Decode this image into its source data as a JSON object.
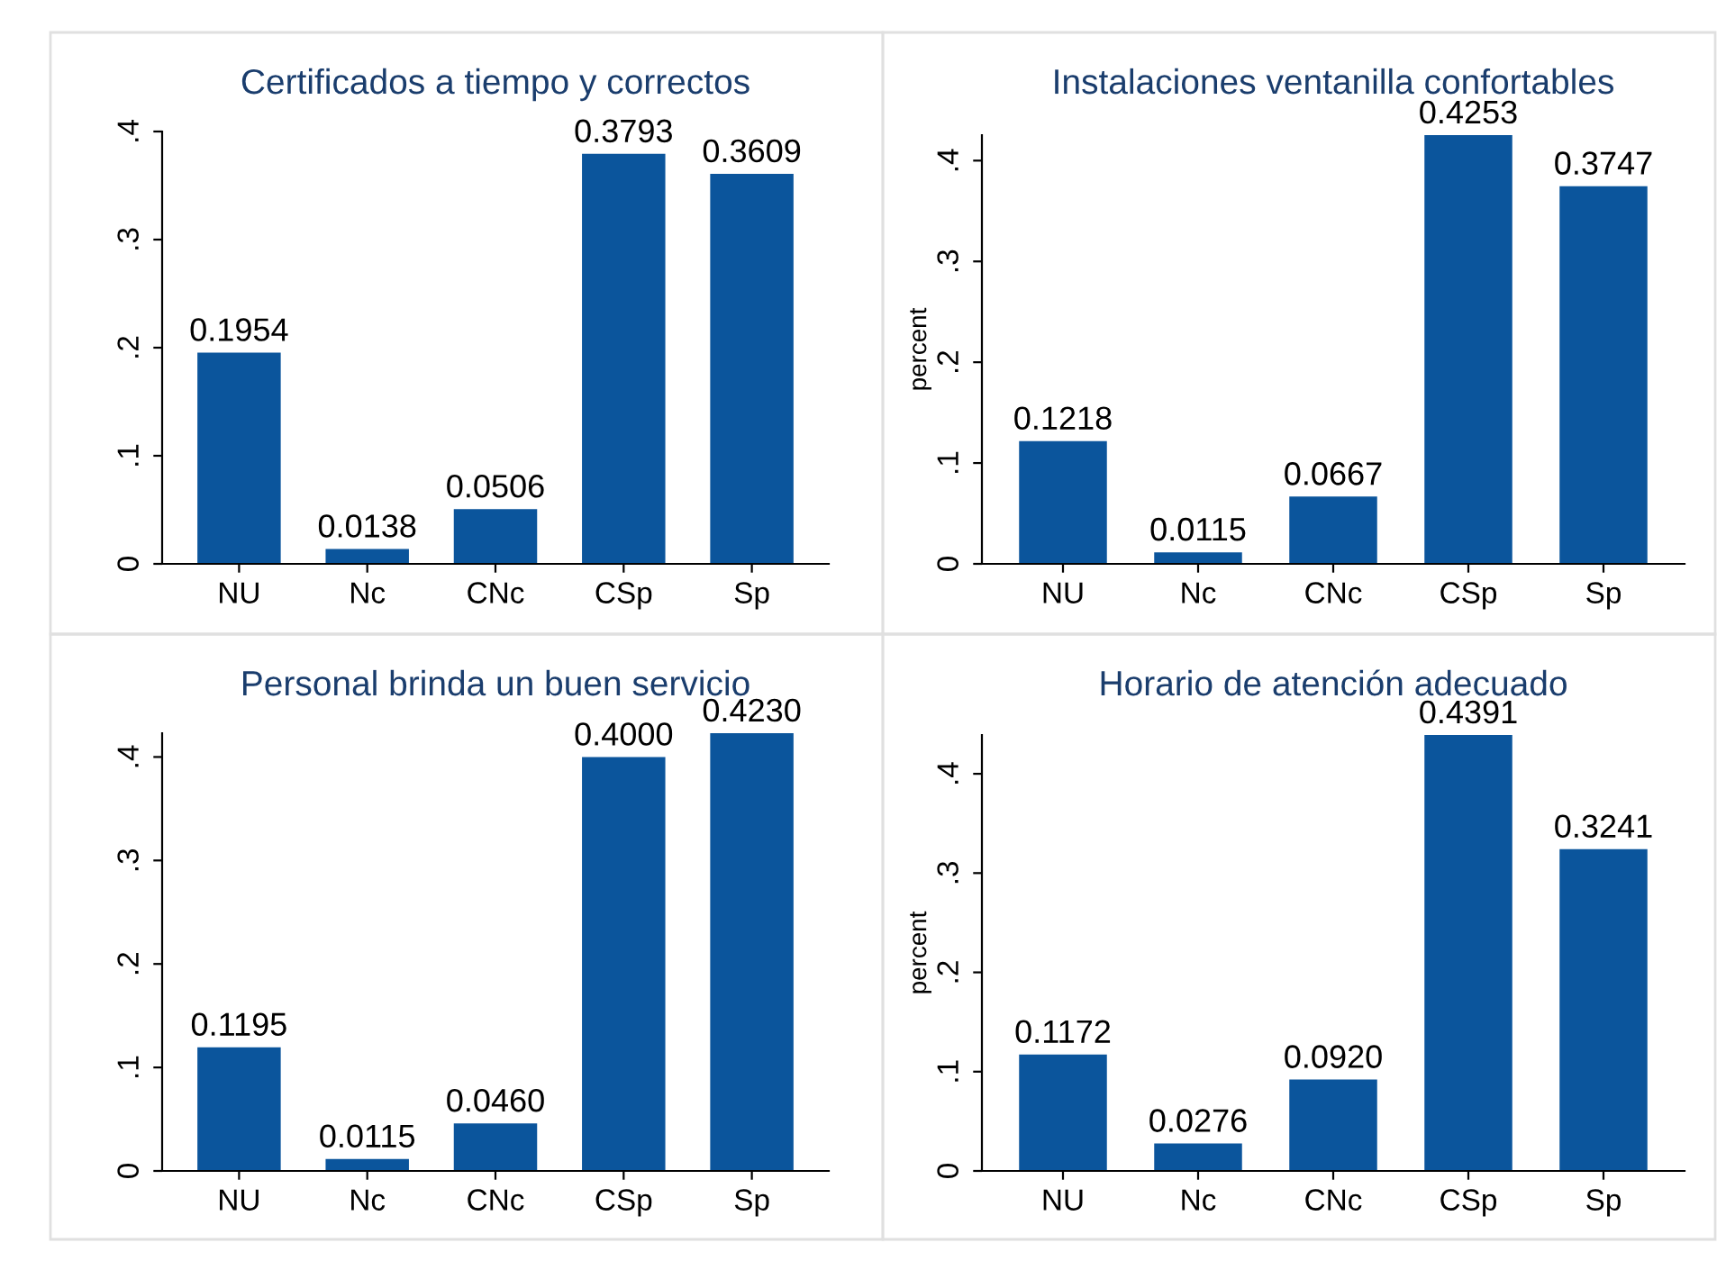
{
  "chart_data": [
    {
      "type": "bar",
      "title": "Certificados a tiempo y correctos",
      "categories": [
        "NU",
        "Nc",
        "CNc",
        "CSp",
        "Sp"
      ],
      "values": [
        0.1954,
        0.0138,
        0.0506,
        0.3793,
        0.3609
      ],
      "value_labels": [
        "0.1954",
        "0.0138",
        "0.0506",
        "0.3793",
        "0.3609"
      ],
      "color": "#0b559c",
      "ylim": [
        0,
        0.4
      ],
      "yticks": [
        {
          "value": 0,
          "label": "0"
        },
        {
          "value": 0.1,
          "label": ".1"
        },
        {
          "value": 0.2,
          "label": ".2"
        },
        {
          "value": 0.3,
          "label": ".3"
        },
        {
          "value": 0.4,
          "label": ".4"
        }
      ],
      "grid": false,
      "legend": false
    },
    {
      "type": "bar",
      "title": "Instalaciones ventanilla confortables",
      "ylabel": "percent",
      "categories": [
        "NU",
        "Nc",
        "CNc",
        "CSp",
        "Sp"
      ],
      "values": [
        0.1218,
        0.0115,
        0.0667,
        0.4253,
        0.3747
      ],
      "value_labels": [
        "0.1218",
        "0.0115",
        "0.0667",
        "0.4253",
        "0.3747"
      ],
      "color": "#0b559c",
      "ylim": [
        0,
        0.4253
      ],
      "yticks": [
        {
          "value": 0,
          "label": "0"
        },
        {
          "value": 0.1,
          "label": ".1"
        },
        {
          "value": 0.2,
          "label": ".2"
        },
        {
          "value": 0.3,
          "label": ".3"
        },
        {
          "value": 0.4,
          "label": ".4"
        }
      ],
      "grid": false,
      "legend": false
    },
    {
      "type": "bar",
      "title": "Personal brinda un buen servicio",
      "categories": [
        "NU",
        "Nc",
        "CNc",
        "CSp",
        "Sp"
      ],
      "values": [
        0.1195,
        0.0115,
        0.046,
        0.4,
        0.423
      ],
      "value_labels": [
        "0.1195",
        "0.0115",
        "0.0460",
        "0.4000",
        "0.4230"
      ],
      "color": "#0b559c",
      "ylim": [
        0,
        0.423
      ],
      "yticks": [
        {
          "value": 0,
          "label": "0"
        },
        {
          "value": 0.1,
          "label": ".1"
        },
        {
          "value": 0.2,
          "label": ".2"
        },
        {
          "value": 0.3,
          "label": ".3"
        },
        {
          "value": 0.4,
          "label": ".4"
        }
      ],
      "grid": false,
      "legend": false
    },
    {
      "type": "bar",
      "title": "Horario de atención adecuado",
      "ylabel": "percent",
      "categories": [
        "NU",
        "Nc",
        "CNc",
        "CSp",
        "Sp"
      ],
      "values": [
        0.1172,
        0.0276,
        0.092,
        0.4391,
        0.3241
      ],
      "value_labels": [
        "0.1172",
        "0.0276",
        "0.0920",
        "0.4391",
        "0.3241"
      ],
      "color": "#0b559c",
      "ylim": [
        0,
        0.4391
      ],
      "yticks": [
        {
          "value": 0,
          "label": "0"
        },
        {
          "value": 0.1,
          "label": ".1"
        },
        {
          "value": 0.2,
          "label": ".2"
        },
        {
          "value": 0.3,
          "label": ".3"
        },
        {
          "value": 0.4,
          "label": ".4"
        }
      ],
      "grid": false,
      "legend": false
    }
  ]
}
